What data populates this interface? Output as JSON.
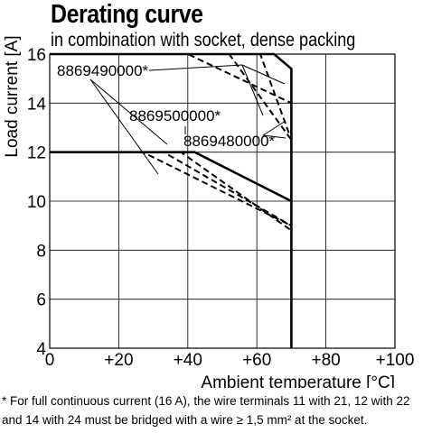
{
  "chart_data": {
    "type": "line",
    "title": "Derating curve",
    "subtitle": "in combination with socket, dense packing",
    "xlabel": "Ambient temperature [°C]",
    "ylabel": "Load current [A]",
    "xlim": [
      0,
      100
    ],
    "ylim": [
      4,
      16
    ],
    "x_ticks": [
      0,
      20,
      40,
      60,
      80,
      100
    ],
    "x_tick_labels": [
      "0",
      "+20",
      "+40",
      "+60",
      "+80",
      "+100"
    ],
    "y_ticks": [
      4,
      6,
      8,
      10,
      12,
      14,
      16
    ],
    "y_tick_labels": [
      "4",
      "6",
      "8",
      "10",
      "12",
      "14",
      "16"
    ],
    "grid": true,
    "series": [
      {
        "style": "solid",
        "x": [
          0,
          65,
          70,
          70
        ],
        "y": [
          16,
          16,
          15.4,
          4
        ]
      },
      {
        "style": "solid",
        "x": [
          0,
          42,
          70
        ],
        "y": [
          12,
          12,
          10
        ]
      },
      {
        "style": "dashed",
        "x": [
          0,
          40,
          70
        ],
        "y": [
          16,
          16,
          14
        ]
      },
      {
        "style": "dashed",
        "x": [
          0,
          27,
          70
        ],
        "y": [
          12,
          12,
          9
        ]
      },
      {
        "style": "dashed",
        "x": [
          0,
          33,
          70
        ],
        "y": [
          12,
          12,
          9
        ]
      },
      {
        "style": "dashed",
        "x": [
          0,
          38,
          70
        ],
        "y": [
          12,
          12,
          8.8
        ]
      },
      {
        "style": "dashed",
        "x": [
          0,
          52,
          70
        ],
        "y": [
          16,
          16,
          12.5
        ]
      },
      {
        "style": "dashed",
        "x": [
          0,
          61,
          70
        ],
        "y": [
          16,
          16,
          12.5
        ]
      }
    ],
    "annotations": [
      {
        "text": "8869490000*"
      },
      {
        "text": "8869500000*"
      },
      {
        "text": "8869480000*"
      }
    ]
  },
  "footnote": "* For full continuous current (16 A), the wire terminals 11 with 21, 12 with 22 and 14 with 24 must be bridged with a wire ≥ 1,5 mm² at the socket."
}
